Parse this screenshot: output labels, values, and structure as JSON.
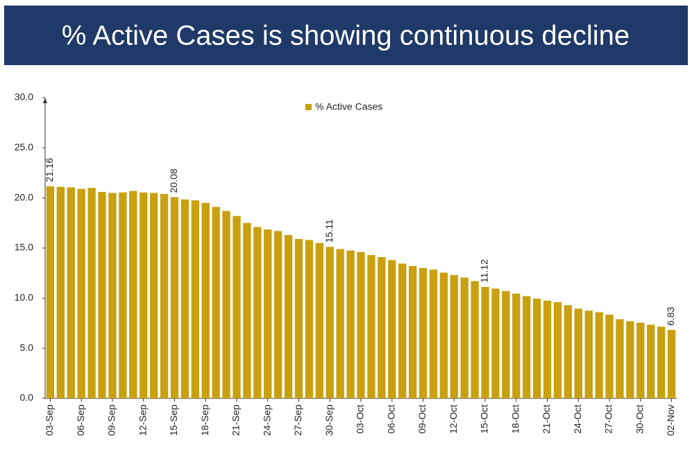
{
  "chart_data": {
    "type": "bar",
    "title": "% Active Cases is showing continuous decline",
    "categories": [
      "03-Sep",
      null,
      null,
      "06-Sep",
      null,
      null,
      "09-Sep",
      null,
      null,
      "12-Sep",
      null,
      null,
      "15-Sep",
      null,
      null,
      "18-Sep",
      null,
      null,
      "21-Sep",
      null,
      null,
      "24-Sep",
      null,
      null,
      "27-Sep",
      null,
      null,
      "30-Sep",
      null,
      null,
      "03-Oct",
      null,
      null,
      "06-Oct",
      null,
      null,
      "09-Oct",
      null,
      null,
      "12-Oct",
      null,
      null,
      "15-Oct",
      null,
      null,
      "18-Oct",
      null,
      null,
      "21-Oct",
      null,
      null,
      "24-Oct",
      null,
      null,
      "27-Oct",
      null,
      null,
      "30-Oct",
      null,
      null,
      "02-Nov"
    ],
    "series": [
      {
        "name": "% Active Cases",
        "color": "#c9a010",
        "values": [
          21.16,
          21.1,
          21.05,
          20.9,
          21.0,
          20.6,
          20.5,
          20.55,
          20.7,
          20.55,
          20.5,
          20.4,
          20.08,
          19.85,
          19.75,
          19.5,
          19.1,
          18.7,
          18.2,
          17.5,
          17.1,
          16.85,
          16.7,
          16.3,
          15.9,
          15.8,
          15.5,
          15.11,
          14.9,
          14.75,
          14.6,
          14.3,
          14.1,
          13.8,
          13.45,
          13.2,
          13.0,
          12.85,
          12.55,
          12.3,
          12.05,
          11.7,
          11.12,
          10.95,
          10.7,
          10.45,
          10.2,
          9.95,
          9.75,
          9.6,
          9.3,
          8.95,
          8.75,
          8.6,
          8.35,
          7.9,
          7.7,
          7.55,
          7.35,
          7.15,
          6.83
        ],
        "value_labels": [
          "21.16",
          null,
          null,
          null,
          null,
          null,
          null,
          null,
          null,
          null,
          null,
          null,
          "20.08",
          null,
          null,
          null,
          null,
          null,
          null,
          null,
          null,
          null,
          null,
          null,
          null,
          null,
          null,
          "15.11",
          null,
          null,
          null,
          null,
          null,
          null,
          null,
          null,
          null,
          null,
          null,
          null,
          null,
          null,
          "11.12",
          null,
          null,
          null,
          null,
          null,
          null,
          null,
          null,
          null,
          null,
          null,
          null,
          null,
          null,
          null,
          null,
          null,
          "6.83"
        ]
      }
    ],
    "ylim": [
      0,
      30
    ],
    "yticks": [
      {
        "value": 0,
        "label": "0.0"
      },
      {
        "value": 5,
        "label": "5.0"
      },
      {
        "value": 10,
        "label": "10.0"
      },
      {
        "value": 15,
        "label": "15.0"
      },
      {
        "value": 20,
        "label": "20.0"
      },
      {
        "value": 25,
        "label": "25.0"
      },
      {
        "value": 30,
        "label": "30.0"
      }
    ],
    "legend": "top"
  }
}
